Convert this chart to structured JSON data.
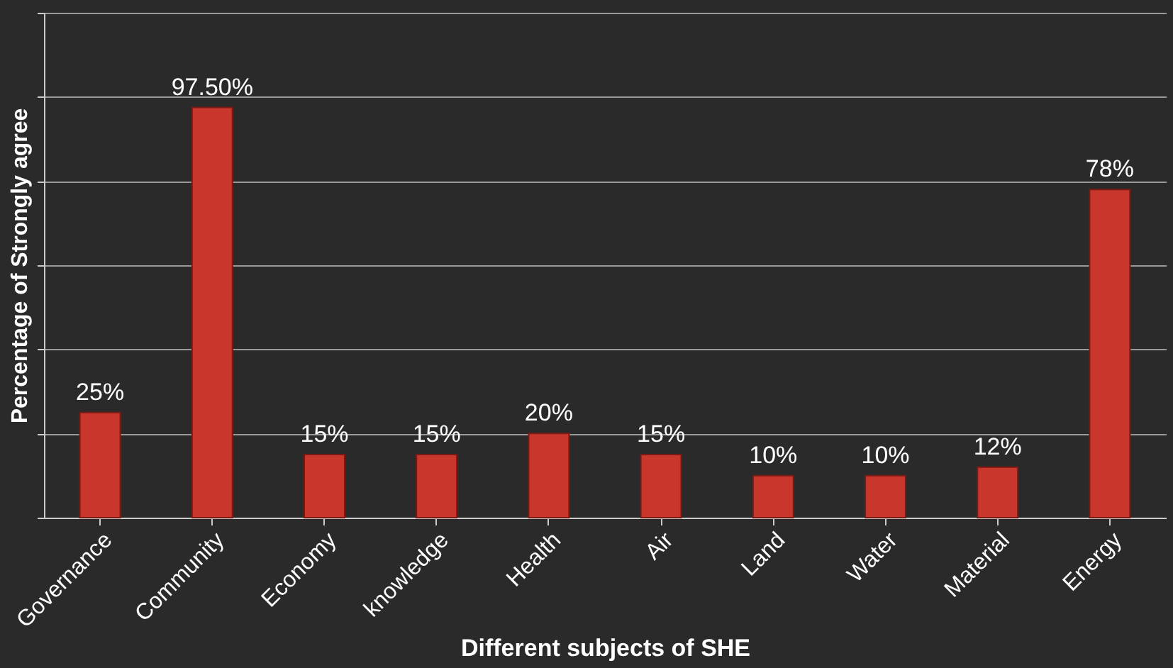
{
  "chart_data": {
    "type": "bar",
    "xlabel": "Different subjects of SHE",
    "ylabel": "Percentage of Strongly agree",
    "categories": [
      "Governance",
      "Community",
      "Economy",
      "knowledge",
      "Health",
      "Air",
      "Land",
      "Water",
      "Material",
      "Energy"
    ],
    "values": [
      25,
      97.5,
      15,
      15,
      20,
      15,
      10,
      10,
      12,
      78
    ],
    "value_labels": [
      "25%",
      "97.50%",
      "15%",
      "15%",
      "20%",
      "15%",
      "10%",
      "10%",
      "12%",
      "78%"
    ],
    "color": "#c9372c",
    "ylim": [
      0,
      120
    ],
    "yticks": [
      {
        "value": 0,
        "label": null
      },
      {
        "value": 20,
        "label": null
      },
      {
        "value": 40,
        "label": null
      },
      {
        "value": 60,
        "label": null
      },
      {
        "value": 80,
        "label": null
      },
      {
        "value": 100,
        "label": null
      },
      {
        "value": 120,
        "label": null
      }
    ],
    "grid": "y",
    "tick_labels": "x"
  }
}
